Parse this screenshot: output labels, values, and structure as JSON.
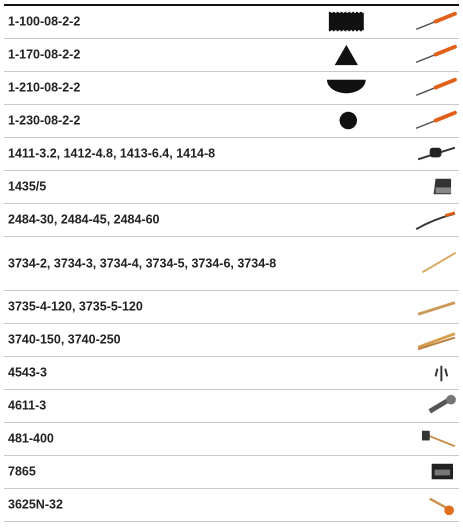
{
  "table": {
    "rows": [
      "1-100-08-2-2",
      "1-170-08-2-2",
      "1-210-08-2-2",
      "1-230-08-2-2",
      "1411-3.2, 1412-4.8, 1413-6.4, 1414-8",
      "1435/5",
      "2484-30, 2484-45, 2484-60",
      "3734-2, 3734-3, 3734-4, 3734-5, 3734-6, 3734-8",
      "3735-4-120, 3735-5-120",
      "3740-150, 3740-250",
      "4543-3",
      "4611-3",
      "481-400",
      "7865",
      "3625N-32"
    ]
  }
}
